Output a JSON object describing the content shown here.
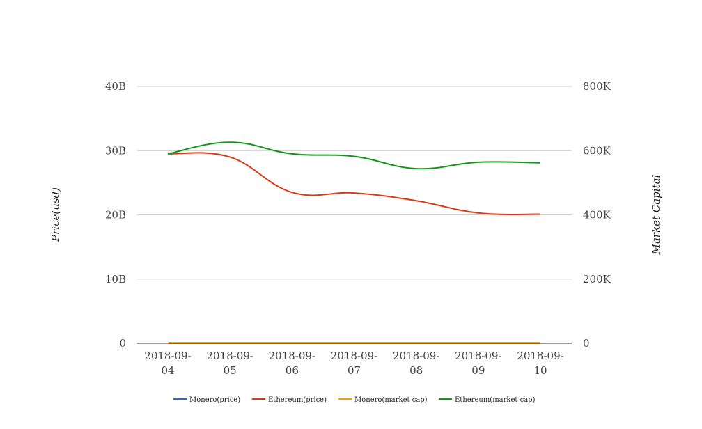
{
  "chart_data": {
    "type": "line",
    "title": "",
    "xlabel": "",
    "ylabel_left": "Price(usd)",
    "ylabel_right": "Market Capital",
    "categories": [
      "2018-09-04",
      "2018-09-05",
      "2018-09-06",
      "2018-09-07",
      "2018-09-08",
      "2018-09-09",
      "2018-09-10"
    ],
    "category_lines": [
      [
        "2018-09-",
        "04"
      ],
      [
        "2018-09-",
        "05"
      ],
      [
        "2018-09-",
        "06"
      ],
      [
        "2018-09-",
        "07"
      ],
      [
        "2018-09-",
        "08"
      ],
      [
        "2018-09-",
        "09"
      ],
      [
        "2018-09-",
        "10"
      ]
    ],
    "left_axis": {
      "ylim": [
        0,
        40000000000
      ],
      "ticks": [
        0,
        10000000000,
        20000000000,
        30000000000,
        40000000000
      ],
      "tick_labels": [
        "0",
        "10B",
        "20B",
        "30B",
        "40B"
      ]
    },
    "right_axis": {
      "ylim": [
        0,
        800000
      ],
      "ticks": [
        0,
        200000,
        400000,
        600000,
        800000
      ],
      "tick_labels": [
        "0",
        "200K",
        "400K",
        "600K",
        "800K"
      ]
    },
    "grid": true,
    "legend_position": "bottom",
    "series": [
      {
        "name": "Monero(price)",
        "axis": "left",
        "color": "#3366cc",
        "values": [
          0,
          0,
          0,
          0,
          0,
          0,
          0
        ]
      },
      {
        "name": "Ethereum(price)",
        "axis": "left",
        "color": "#dc3912",
        "values": [
          29500000000,
          29000000000,
          23500000000,
          23400000000,
          22200000000,
          20300000000,
          20100000000
        ]
      },
      {
        "name": "Monero(market cap)",
        "axis": "right",
        "color": "#ff9900",
        "values": [
          2000,
          2000,
          2000,
          2000,
          2000,
          2000,
          2000
        ]
      },
      {
        "name": "Ethereum(market cap)",
        "axis": "right",
        "color": "#109618",
        "values": [
          590000,
          626000,
          590000,
          582000,
          544000,
          564000,
          562000
        ]
      }
    ]
  }
}
